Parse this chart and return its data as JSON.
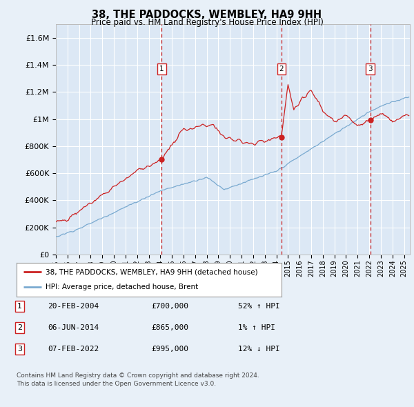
{
  "title": "38, THE PADDOCKS, WEMBLEY, HA9 9HH",
  "subtitle": "Price paid vs. HM Land Registry's House Price Index (HPI)",
  "background_color": "#e8f0f8",
  "plot_bg_color": "#dce8f5",
  "grid_color": "#ffffff",
  "ylim": [
    0,
    1700000
  ],
  "yticks": [
    0,
    200000,
    400000,
    600000,
    800000,
    1000000,
    1200000,
    1400000,
    1600000
  ],
  "ytick_labels": [
    "£0",
    "£200K",
    "£400K",
    "£600K",
    "£800K",
    "£1M",
    "£1.2M",
    "£1.4M",
    "£1.6M"
  ],
  "hpi_color": "#7aaad0",
  "price_color": "#cc2222",
  "sale_dates": [
    2004.12,
    2014.43,
    2022.09
  ],
  "sale_prices": [
    700000,
    865000,
    995000
  ],
  "sale_labels": [
    "1",
    "2",
    "3"
  ],
  "legend_label_price": "38, THE PADDOCKS, WEMBLEY, HA9 9HH (detached house)",
  "legend_label_hpi": "HPI: Average price, detached house, Brent",
  "table_data": [
    [
      "1",
      "20-FEB-2004",
      "£700,000",
      "52% ↑ HPI"
    ],
    [
      "2",
      "06-JUN-2014",
      "£865,000",
      "1% ↑ HPI"
    ],
    [
      "3",
      "07-FEB-2022",
      "£995,000",
      "12% ↓ HPI"
    ]
  ],
  "footer": "Contains HM Land Registry data © Crown copyright and database right 2024.\nThis data is licensed under the Open Government Licence v3.0.",
  "xmin": 1995.0,
  "xmax": 2025.5
}
